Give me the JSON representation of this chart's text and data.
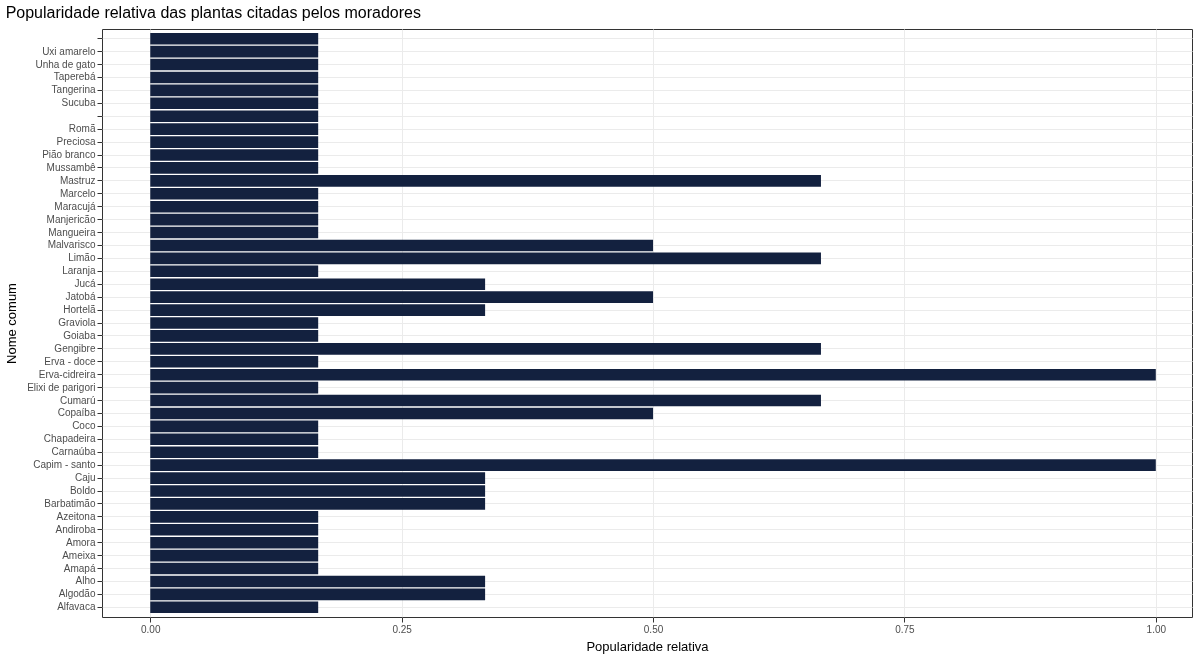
{
  "chart_data": {
    "type": "bar",
    "orientation": "horizontal",
    "title": "Popularidade relativa das plantas citadas pelos moradores",
    "xlabel": "Popularidade relativa",
    "ylabel": "Nome comum",
    "categories": [
      null,
      "Uxi amarelo",
      "Unha de gato",
      "Taperebá",
      "Tangerina",
      "Sucuba",
      null,
      "Romã",
      "Preciosa",
      "Pião branco",
      "Mussambê",
      "Mastruz",
      "Marcelo",
      "Maracujá",
      "Manjericão",
      "Mangueira",
      "Malvarisco",
      "Limão",
      "Laranja",
      "Jucá",
      "Jatobá",
      "Hortelã",
      "Graviola",
      "Goiaba",
      "Gengibre",
      "Erva - doce",
      "Erva-cidreira",
      "Elixi de parigori",
      "Cumarú",
      "Copaíba",
      "Coco",
      "Chapadeira",
      "Carnaúba",
      "Capim - santo",
      "Caju",
      "Boldo",
      "Barbatimão",
      "Azeitona",
      "Andiroba",
      "Amora",
      "Ameixa",
      "Amapá",
      "Alho",
      "Algodão",
      "Alfavaca"
    ],
    "values": [
      0.167,
      0.167,
      0.167,
      0.167,
      0.167,
      0.167,
      0.167,
      0.167,
      0.167,
      0.167,
      0.167,
      0.667,
      0.167,
      0.167,
      0.167,
      0.167,
      0.5,
      0.667,
      0.167,
      0.333,
      0.5,
      0.333,
      0.167,
      0.167,
      0.667,
      0.167,
      1,
      0.167,
      0.667,
      0.5,
      0.167,
      0.167,
      0.167,
      1,
      0.333,
      0.333,
      0.333,
      0.167,
      0.167,
      0.167,
      0.167,
      0.167,
      0.333,
      0.333,
      0.167
    ],
    "color": "#13213f",
    "xlim": [
      -0.048,
      1.036
    ],
    "xticks": [
      {
        "value": 0,
        "label": "0.00"
      },
      0.25,
      {
        "value": 0.5,
        "label": "0.50"
      },
      0.75,
      {
        "value": 1,
        "label": "1.00"
      }
    ],
    "grid": true
  }
}
